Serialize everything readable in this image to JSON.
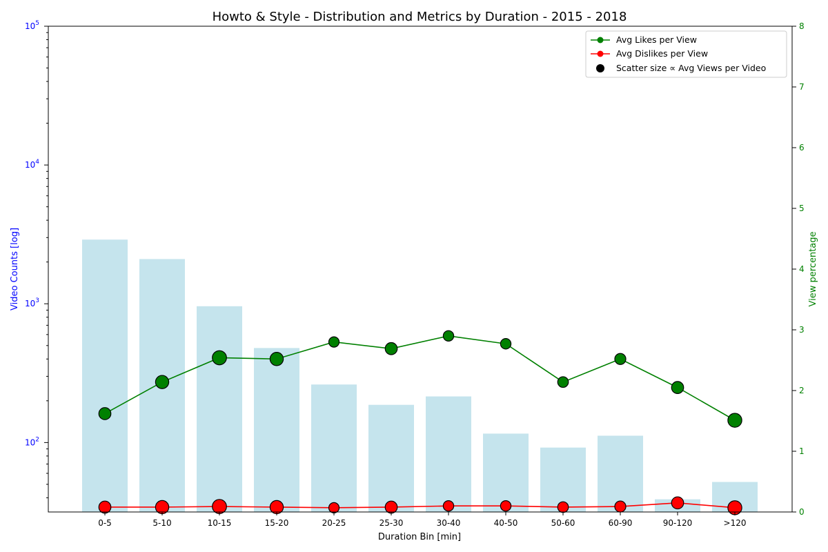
{
  "chart_data": {
    "type": "bar",
    "title": "Howto & Style - Distribution and Metrics by Duration - 2015 - 2018",
    "xlabel": "Duration Bin [min]",
    "ylabel": "Video Counts [log]",
    "y2label": "View percentage",
    "yscale": "log",
    "ylim": [
      31.6,
      100000
    ],
    "y2lim": [
      0,
      8
    ],
    "y_ticks": [
      {
        "base": "10",
        "exp": "2"
      },
      {
        "base": "10",
        "exp": "3"
      },
      {
        "base": "10",
        "exp": "4"
      },
      {
        "base": "10",
        "exp": "5"
      }
    ],
    "y2_ticks": [
      "0",
      "1",
      "2",
      "3",
      "4",
      "5",
      "6",
      "7",
      "8"
    ],
    "categories": [
      "0-5",
      "5-10",
      "10-15",
      "15-20",
      "20-25",
      "25-30",
      "30-40",
      "40-50",
      "50-60",
      "60-90",
      "90-120",
      ">120"
    ],
    "bar_values": [
      2900,
      2100,
      960,
      480,
      262,
      187,
      215,
      116,
      92,
      112,
      39,
      52
    ],
    "bar_color": "#add8e6",
    "series": [
      {
        "name": "Avg Likes per View",
        "color": "#008000",
        "values": [
          1.62,
          2.14,
          2.54,
          2.52,
          2.8,
          2.69,
          2.9,
          2.77,
          2.14,
          2.52,
          2.05,
          1.51
        ]
      },
      {
        "name": "Avg Dislikes per View",
        "color": "#ff0000",
        "values": [
          0.08,
          0.08,
          0.09,
          0.08,
          0.07,
          0.08,
          0.1,
          0.1,
          0.08,
          0.09,
          0.15,
          0.07
        ]
      }
    ],
    "scatter_size_label": "Scatter size ∝ Avg Views per Video",
    "avg_views_relative": [
      0.55,
      0.72,
      0.85,
      0.72,
      0.3,
      0.55,
      0.32,
      0.32,
      0.35,
      0.4,
      0.55,
      0.82
    ],
    "legend_position": "top-right",
    "grid": false,
    "colors": {
      "left_axis": "#0000ff",
      "right_axis": "#008000"
    }
  }
}
